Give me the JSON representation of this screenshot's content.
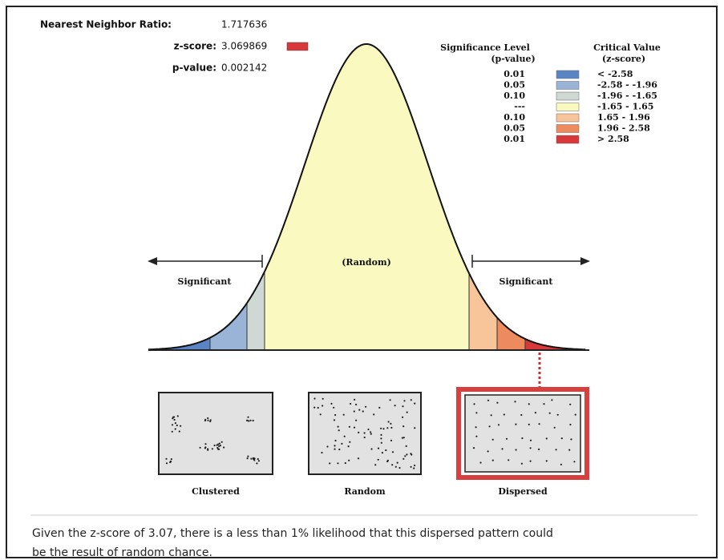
{
  "stats": [
    {
      "label": "Nearest Neighbor Ratio:",
      "value": "1.717636"
    },
    {
      "label": "z-score:",
      "value": "3.069869"
    },
    {
      "label": "p-value:",
      "value": "0.002142"
    }
  ],
  "legend": {
    "p_header": [
      "Significance Level",
      "(p-value)"
    ],
    "z_header": [
      "Critical Value",
      "(z-score)"
    ],
    "rows": [
      {
        "p": "0.01",
        "z": "< -2.58",
        "color": "#5b84c4"
      },
      {
        "p": "0.05",
        "z": "-2.58 - -1.96",
        "color": "#99b4d6"
      },
      {
        "p": "0.10",
        "z": "-1.96 - -1.65",
        "color": "#cfd8d2"
      },
      {
        "p": "---",
        "z": "-1.65 - 1.65",
        "color": "#fafac0"
      },
      {
        "p": "0.10",
        "z": "1.65 - 1.96",
        "color": "#f8c49a"
      },
      {
        "p": "0.05",
        "z": "1.96 - 2.58",
        "color": "#ee8b5e"
      },
      {
        "p": "0.01",
        "z": "> 2.58",
        "color": "#d8383a"
      }
    ]
  },
  "curve": {
    "center_label": "(Random)",
    "left_label": "Significant",
    "right_label": "Significant"
  },
  "patterns": [
    "Clustered",
    "Random",
    "Dispersed"
  ],
  "footer": [
    "Given the z-score of 3.07, there is a less than 1% likelihood that this dispersed pattern could",
    "be the result of random chance."
  ]
}
